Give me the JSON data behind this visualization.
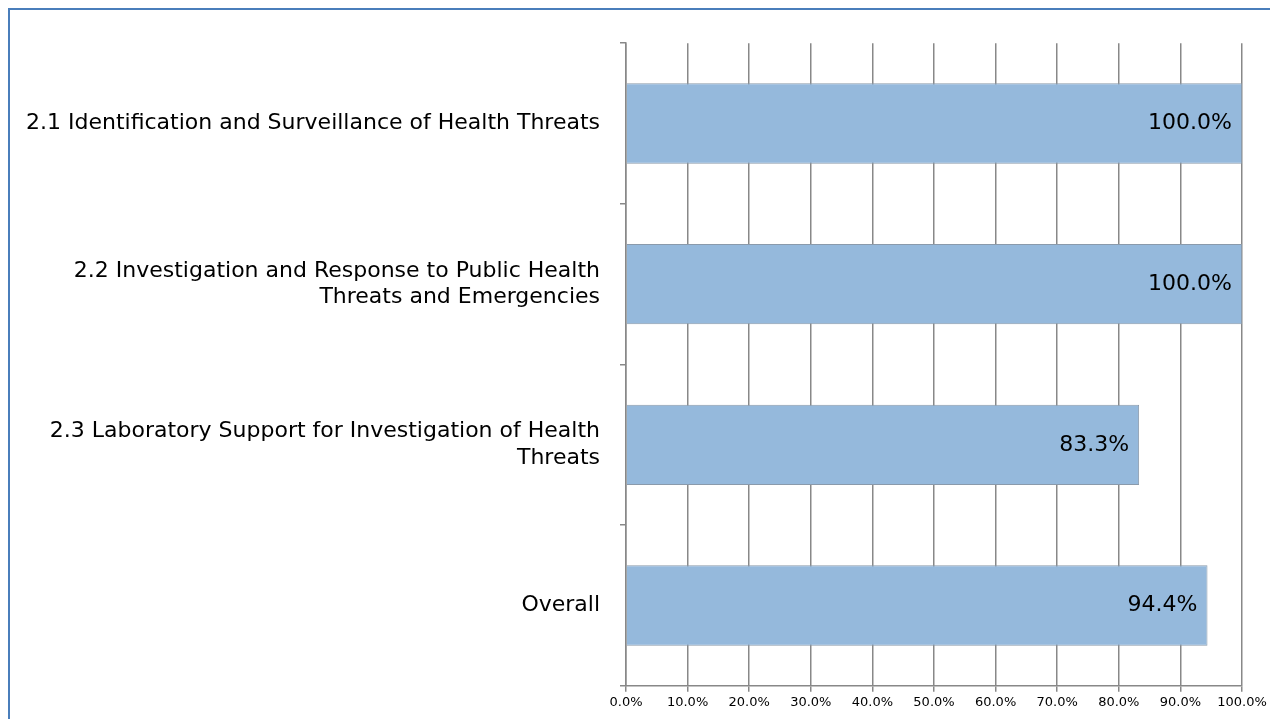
{
  "chart_data": {
    "type": "bar",
    "orientation": "horizontal",
    "categories": [
      "2.1 Identification and Surveillance of Health Threats",
      "2.2 Investigation and Response to Public Health Threats and Emergencies",
      "2.3 Laboratory Support for Investigation of Health Threats",
      "Overall"
    ],
    "values": [
      100,
      100,
      83.3,
      94.4
    ],
    "color": "#95b9dc",
    "value_labels": [
      "100.0%",
      "100.0%",
      "83.3%",
      "94.4%"
    ],
    "xlim": [
      0,
      100
    ],
    "xticks": [
      {
        "value": 0,
        "label": "0.0%"
      },
      {
        "value": 10,
        "label": "10.0%"
      },
      {
        "value": 20,
        "label": "20.0%"
      },
      {
        "value": 30,
        "label": "30.0%"
      },
      {
        "value": 40,
        "label": "40.0%"
      },
      {
        "value": 50,
        "label": "50.0%"
      },
      {
        "value": 60,
        "label": "60.0%"
      },
      {
        "value": 70,
        "label": "70.0%"
      },
      {
        "value": 80,
        "label": "80.0%"
      },
      {
        "value": 90,
        "label": "90.0%"
      },
      {
        "value": 100,
        "label": "100.0%"
      }
    ],
    "grid": "x",
    "legend": false
  }
}
